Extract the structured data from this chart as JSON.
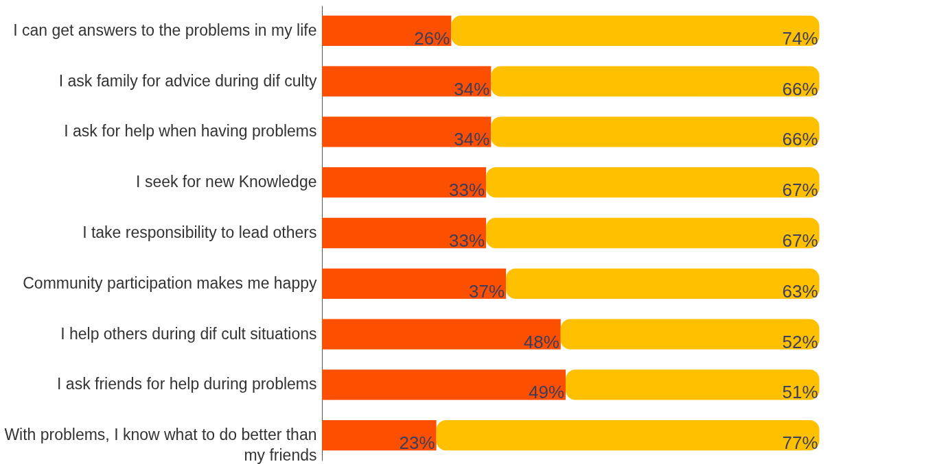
{
  "chart_data": {
    "type": "bar",
    "orientation": "horizontal",
    "stacked": true,
    "tick_labels": "y",
    "categories": [
      "I can get answers to the problems in my life",
      "I ask family for advice during dif culty",
      "I ask for help when having problems",
      "I seek for new Knowledge",
      "I take responsibility to lead others",
      "Community participation makes me happy",
      "I help others during dif cult situations",
      "I ask friends for help during problems",
      "With problems, I know what to do better than\nmy friends"
    ],
    "series": [
      {
        "color": "#fc5000",
        "values": [
          26,
          34,
          34,
          33,
          33,
          37,
          48,
          49,
          23
        ],
        "value_labels": [
          "26%",
          "34%",
          "34%",
          "33%",
          "33%",
          "37%",
          "48%",
          "49%",
          "23%"
        ]
      },
      {
        "color": "#ffc000",
        "values": [
          74,
          66,
          66,
          67,
          67,
          63,
          52,
          51,
          77
        ],
        "value_labels": [
          "74%",
          "66%",
          "66%",
          "67%",
          "67%",
          "63%",
          "52%",
          "51%",
          "77%"
        ]
      }
    ]
  }
}
